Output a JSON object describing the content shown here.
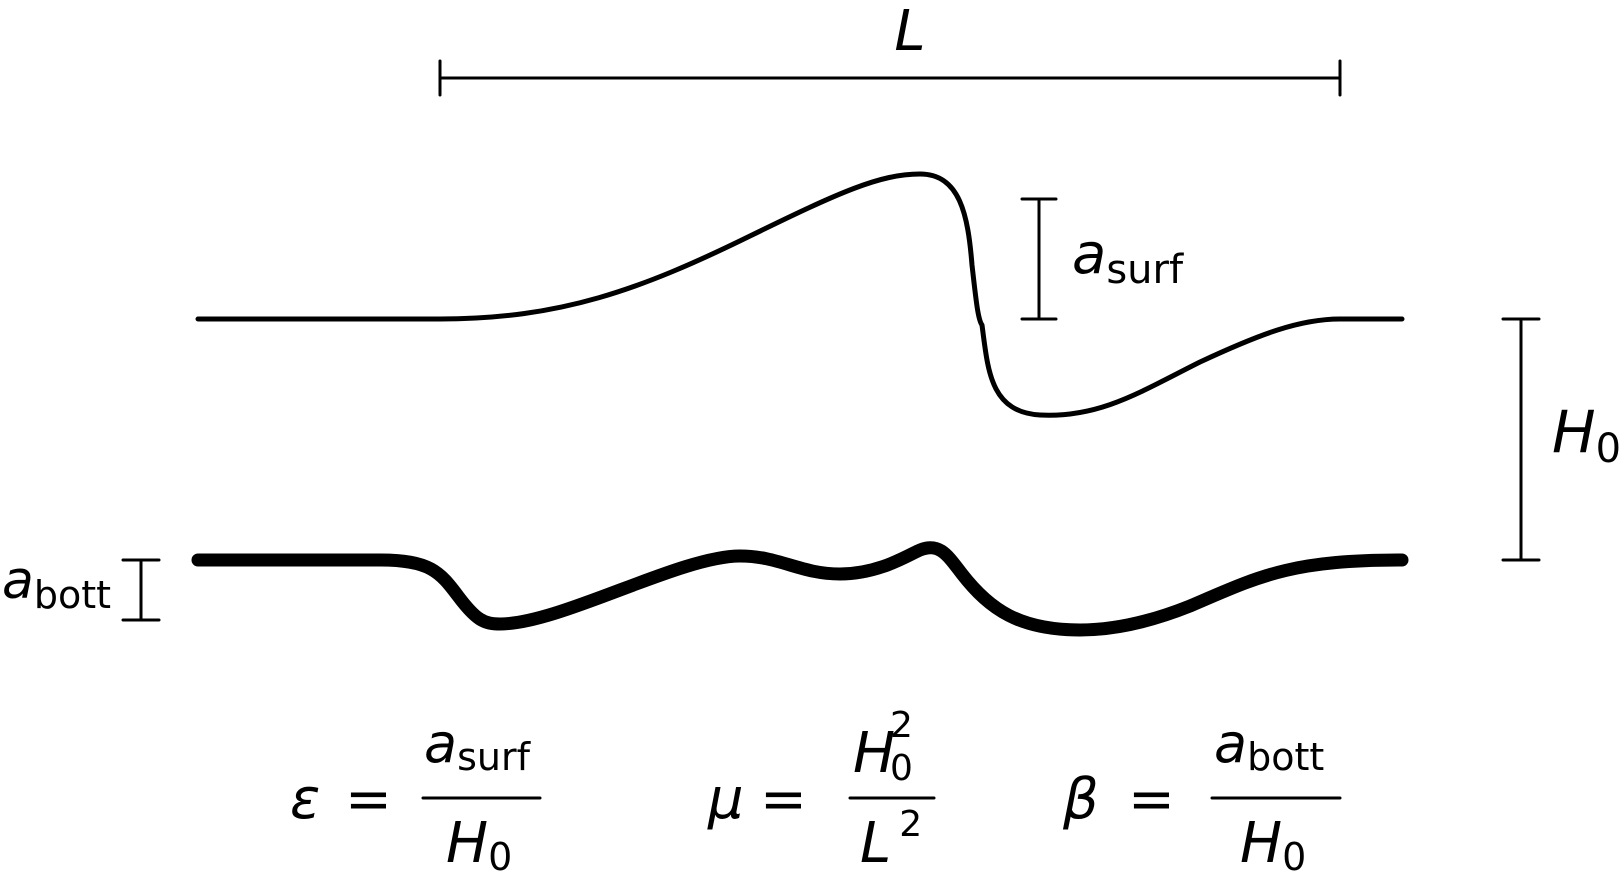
{
  "labels": {
    "length": "L",
    "depth_main": "H",
    "depth_sub": "0",
    "surf_main": "a",
    "surf_sub": "surf",
    "bott_main": "a",
    "bott_sub": "bott"
  },
  "formulas": {
    "epsilon": {
      "symbol": "ε",
      "equals": "=",
      "num_main": "a",
      "num_sub": "surf",
      "den_main": "H",
      "den_sub": "0"
    },
    "mu": {
      "symbol": "μ",
      "equals": "=",
      "num_main": "H",
      "num_sub": "0",
      "num_sup": "2",
      "den_main": "L",
      "den_sup": "2"
    },
    "beta": {
      "symbol": "β",
      "equals": "=",
      "num_main": "a",
      "num_sub": "bott",
      "den_main": "H",
      "den_sub": "0"
    }
  },
  "colors": {
    "ink": "#000000",
    "background": "#ffffff"
  }
}
